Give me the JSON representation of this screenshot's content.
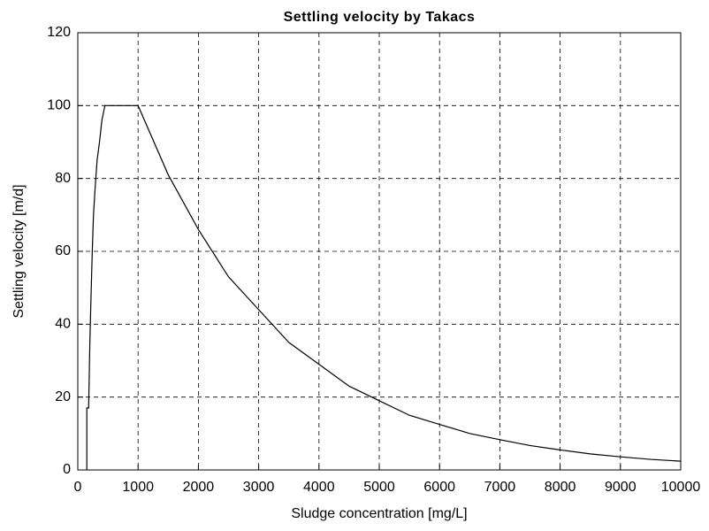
{
  "chart_data": {
    "type": "line",
    "title": "Settling velocity by Takacs",
    "x_label": "Sludge concentration [mg/L]",
    "y_label": "Settling velocity [m/d]",
    "x": [
      150,
      150,
      180,
      200,
      220,
      240,
      260,
      290,
      320,
      360,
      400,
      450,
      500,
      1000,
      1500,
      2000,
      2500,
      3000,
      3500,
      4000,
      4500,
      5000,
      5500,
      6000,
      6500,
      7000,
      7500,
      8000,
      8500,
      9000,
      9500,
      10000
    ],
    "values": [
      0,
      17,
      17,
      35,
      48,
      60,
      70,
      78,
      85,
      90,
      96,
      100,
      100,
      100,
      81,
      66,
      53,
      44,
      35,
      29,
      23,
      19,
      15,
      12.5,
      10,
      8.3,
      6.7,
      5.5,
      4.4,
      3.6,
      2.9,
      2.4
    ],
    "color": "#000000",
    "xlim": [
      0,
      10000
    ],
    "xticks": [
      0,
      1000,
      2000,
      3000,
      4000,
      5000,
      6000,
      7000,
      8000,
      9000,
      10000
    ],
    "ylim": [
      0,
      120
    ],
    "yticks": [
      0,
      20,
      40,
      60,
      80,
      100,
      120
    ],
    "grid": true
  }
}
